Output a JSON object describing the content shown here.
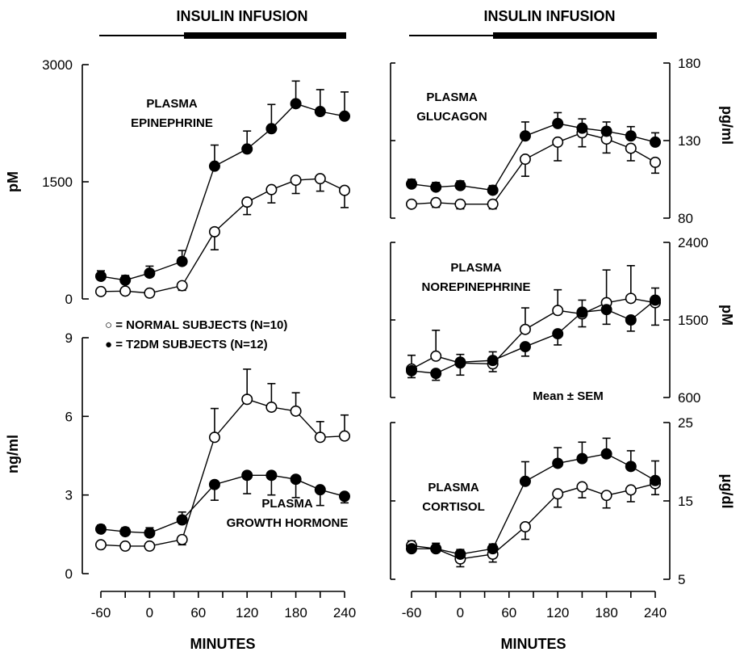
{
  "header": {
    "left_title": "INSULIN INFUSION",
    "right_title": "INSULIN INFUSION"
  },
  "legend": {
    "normal": "○ = NORMAL SUBJECTS (N=10)",
    "t2dm": "● = T2DM SUBJECTS (N=12)"
  },
  "footnote": "Mean ± SEM",
  "chart_data": [
    {
      "type": "line",
      "id": "epinephrine",
      "title": "PLASMA EPINEPHRINE",
      "title_lines": [
        "PLASMA",
        "EPINEPHRINE"
      ],
      "ylabel": "pM",
      "xlabel": "",
      "ylim": [
        0,
        3000
      ],
      "yticks": [
        0,
        1500,
        3000
      ],
      "axis_side": "left",
      "x": [
        -60,
        -30,
        0,
        40,
        80,
        120,
        150,
        180,
        210,
        240
      ],
      "series": [
        {
          "name": "NORMAL SUBJECTS (N=10)",
          "marker": "open",
          "values": [
            95,
            100,
            75,
            170,
            860,
            1240,
            1400,
            1520,
            1540,
            1390
          ],
          "err": [
            30,
            30,
            25,
            60,
            230,
            160,
            170,
            170,
            160,
            220
          ]
        },
        {
          "name": "T2DM SUBJECTS (N=12)",
          "marker": "filled",
          "values": [
            290,
            240,
            330,
            480,
            1700,
            1920,
            2180,
            2500,
            2400,
            2340
          ],
          "err": [
            70,
            60,
            90,
            140,
            270,
            230,
            310,
            290,
            280,
            310
          ]
        }
      ]
    },
    {
      "type": "line",
      "id": "growth-hormone",
      "title": "PLASMA GROWTH HORMONE",
      "title_lines": [
        "PLASMA",
        "GROWTH HORMONE"
      ],
      "ylabel": "ng/ml",
      "xlabel": "MINUTES",
      "ylim": [
        0,
        9
      ],
      "yticks": [
        0,
        3,
        6,
        9
      ],
      "axis_side": "left",
      "x": [
        -60,
        -30,
        0,
        40,
        80,
        120,
        150,
        180,
        210,
        240
      ],
      "xticks": [
        -60,
        -30,
        0,
        30,
        60,
        90,
        120,
        150,
        180,
        210,
        240
      ],
      "xtick_labels": [
        "-60",
        "",
        "0",
        "",
        "60",
        "",
        "120",
        "",
        "180",
        "",
        "240"
      ],
      "series": [
        {
          "name": "NORMAL SUBJECTS (N=10)",
          "marker": "open",
          "values": [
            1.1,
            1.05,
            1.05,
            1.3,
            5.2,
            6.65,
            6.35,
            6.2,
            5.2,
            5.25
          ],
          "err": [
            0.12,
            0.1,
            0.1,
            0.2,
            1.1,
            1.15,
            0.9,
            0.7,
            0.6,
            0.8
          ]
        },
        {
          "name": "T2DM SUBJECTS (N=12)",
          "marker": "filled",
          "values": [
            1.7,
            1.6,
            1.55,
            2.05,
            3.4,
            3.75,
            3.75,
            3.6,
            3.2,
            2.95
          ],
          "err": [
            0.15,
            0.15,
            0.2,
            0.3,
            0.6,
            0.7,
            0.75,
            0.7,
            0.6,
            0.25
          ]
        }
      ]
    },
    {
      "type": "line",
      "id": "glucagon",
      "title": "PLASMA GLUCAGON",
      "title_lines": [
        "PLASMA",
        "GLUCAGON"
      ],
      "ylabel": "pg/ml",
      "xlabel": "",
      "ylim": [
        80,
        180
      ],
      "yticks": [
        80,
        130,
        180
      ],
      "axis_side": "right",
      "x": [
        -60,
        -30,
        0,
        40,
        80,
        120,
        150,
        180,
        210,
        240
      ],
      "series": [
        {
          "name": "NORMAL SUBJECTS (N=10)",
          "marker": "open",
          "values": [
            89,
            90,
            89,
            89,
            118,
            129,
            135,
            131,
            125,
            116
          ],
          "err": [
            2,
            3,
            3,
            3,
            11,
            12,
            9,
            9,
            8,
            7
          ]
        },
        {
          "name": "T2DM SUBJECTS (N=12)",
          "marker": "filled",
          "values": [
            102,
            100,
            101,
            98,
            133,
            141,
            138,
            136,
            133,
            129
          ],
          "err": [
            3,
            3,
            3,
            3,
            9,
            7,
            6,
            6,
            6,
            6
          ]
        }
      ]
    },
    {
      "type": "line",
      "id": "norepinephrine",
      "title": "PLASMA NOREPINEPHRINE",
      "title_lines": [
        "PLASMA",
        "NOREPINEPHRINE"
      ],
      "ylabel": "pM",
      "xlabel": "",
      "ylim": [
        600,
        2400
      ],
      "yticks": [
        600,
        1500,
        2400
      ],
      "axis_side": "right",
      "x": [
        -60,
        -30,
        0,
        40,
        80,
        120,
        150,
        180,
        210,
        240
      ],
      "series": [
        {
          "name": "NORMAL SUBJECTS (N=10)",
          "marker": "open",
          "values": [
            930,
            1080,
            1000,
            990,
            1390,
            1610,
            1570,
            1700,
            1750,
            1700
          ],
          "err": [
            160,
            300,
            140,
            90,
            250,
            240,
            150,
            380,
            380,
            260
          ]
        },
        {
          "name": "T2DM SUBJECTS (N=12)",
          "marker": "filled",
          "values": [
            910,
            880,
            1010,
            1030,
            1190,
            1340,
            1590,
            1620,
            1500,
            1730
          ],
          "err": [
            80,
            80,
            90,
            100,
            110,
            130,
            140,
            170,
            130,
            140
          ]
        }
      ]
    },
    {
      "type": "line",
      "id": "cortisol",
      "title": "PLASMA CORTISOL",
      "title_lines": [
        "PLASMA",
        "CORTISOL"
      ],
      "ylabel": "μg/dl",
      "xlabel": "MINUTES",
      "ylim": [
        5,
        25
      ],
      "yticks": [
        5,
        15,
        25
      ],
      "axis_side": "right",
      "x": [
        -60,
        -30,
        0,
        40,
        80,
        120,
        150,
        180,
        210,
        240
      ],
      "xticks": [
        -60,
        -30,
        0,
        30,
        60,
        90,
        120,
        150,
        180,
        210,
        240
      ],
      "xtick_labels": [
        "-60",
        "",
        "0",
        "",
        "60",
        "",
        "120",
        "",
        "180",
        "",
        "240"
      ],
      "series": [
        {
          "name": "NORMAL SUBJECTS (N=10)",
          "marker": "open",
          "values": [
            9.3,
            8.9,
            7.6,
            8.2,
            11.7,
            15.9,
            16.8,
            15.7,
            16.4,
            17.2
          ],
          "err": [
            0.6,
            0.7,
            1.0,
            1.0,
            1.6,
            1.7,
            1.4,
            1.6,
            1.5,
            1.4
          ]
        },
        {
          "name": "T2DM SUBJECTS (N=12)",
          "marker": "filled",
          "values": [
            8.9,
            8.9,
            8.2,
            8.9,
            17.5,
            19.8,
            20.4,
            21.0,
            19.4,
            17.6
          ],
          "err": [
            0.4,
            0.5,
            0.6,
            0.6,
            2.5,
            2.0,
            2.1,
            2.0,
            2.0,
            2.5
          ]
        }
      ]
    }
  ]
}
